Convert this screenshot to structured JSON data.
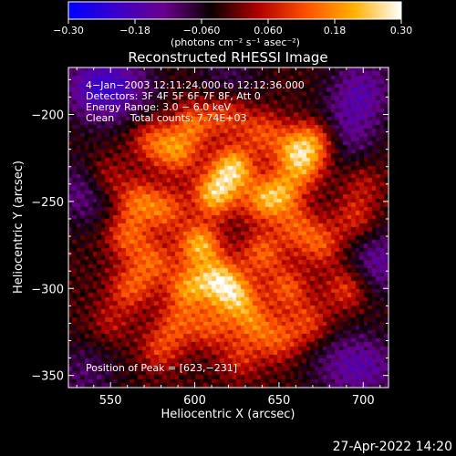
{
  "chart_data": {
    "type": "heatmap",
    "title": "Reconstructed RHESSI Image",
    "xlabel": "Heliocentric X (arcsec)",
    "ylabel": "Heliocentric Y (arcsec)",
    "xlim": [
      525,
      715
    ],
    "ylim": [
      -357,
      -173
    ],
    "x_ticks": [
      550,
      600,
      650,
      700
    ],
    "x_tick_labels": [
      "550",
      "600",
      "650",
      "700"
    ],
    "y_ticks": [
      -200,
      -250,
      -300,
      -350
    ],
    "y_tick_labels": [
      "−200",
      "−250",
      "−300",
      "−350"
    ],
    "colorbar": {
      "range": [
        -0.3,
        0.3
      ],
      "ticks": [
        -0.3,
        -0.18,
        -0.06,
        0.06,
        0.18,
        0.3
      ],
      "tick_labels": [
        "−0.30",
        "−0.18",
        "−0.060",
        "0.060",
        "0.18",
        "0.30"
      ],
      "units_label": "(photons cm⁻² s⁻¹ asec⁻²)",
      "stops": [
        "#0000ff",
        "#3a00cc",
        "#6a008c",
        "#0a0000",
        "#b00000",
        "#ff5000",
        "#ffb000",
        "#ffffff"
      ]
    },
    "annotations": [
      "4−Jan−2003 12:11:24.000 to 12:12:36.000",
      "Detectors: 3F 4F 5F 6F 7F 8F, Att 0",
      "Energy Range: 3.0 − 6.0 keV",
      "Clean     Total counts: 7.74E+03",
      "Position of Peak = [623,−231]"
    ],
    "peak": [
      623,
      -231
    ],
    "blobs": [
      {
        "x": 623,
        "y": -231,
        "value": 0.3
      },
      {
        "x": 612,
        "y": -246,
        "value": 0.29
      },
      {
        "x": 603,
        "y": -275,
        "value": 0.27
      },
      {
        "x": 614,
        "y": -295,
        "value": 0.27
      },
      {
        "x": 625,
        "y": -305,
        "value": 0.24
      },
      {
        "x": 596,
        "y": -300,
        "value": 0.22
      },
      {
        "x": 652,
        "y": -245,
        "value": 0.2
      },
      {
        "x": 640,
        "y": -250,
        "value": 0.19
      },
      {
        "x": 658,
        "y": -220,
        "value": 0.18
      },
      {
        "x": 672,
        "y": -215,
        "value": 0.2
      },
      {
        "x": 665,
        "y": -230,
        "value": 0.18
      },
      {
        "x": 590,
        "y": -222,
        "value": 0.2
      },
      {
        "x": 600,
        "y": -205,
        "value": 0.18
      },
      {
        "x": 575,
        "y": -215,
        "value": 0.16
      },
      {
        "x": 566,
        "y": -250,
        "value": 0.18
      },
      {
        "x": 560,
        "y": -270,
        "value": 0.17
      },
      {
        "x": 562,
        "y": -300,
        "value": 0.16
      },
      {
        "x": 575,
        "y": -285,
        "value": 0.17
      },
      {
        "x": 583,
        "y": -255,
        "value": 0.17
      },
      {
        "x": 640,
        "y": -280,
        "value": 0.18
      },
      {
        "x": 655,
        "y": -300,
        "value": 0.17
      },
      {
        "x": 675,
        "y": -275,
        "value": 0.16
      },
      {
        "x": 690,
        "y": -300,
        "value": 0.15
      },
      {
        "x": 695,
        "y": -260,
        "value": 0.12
      },
      {
        "x": 635,
        "y": -320,
        "value": 0.17
      },
      {
        "x": 650,
        "y": -330,
        "value": 0.15
      },
      {
        "x": 610,
        "y": -322,
        "value": 0.15
      },
      {
        "x": 590,
        "y": -320,
        "value": 0.14
      },
      {
        "x": 580,
        "y": -335,
        "value": 0.13
      },
      {
        "x": 627,
        "y": -340,
        "value": 0.11
      },
      {
        "x": 668,
        "y": -320,
        "value": 0.14
      },
      {
        "x": 640,
        "y": -210,
        "value": 0.15
      },
      {
        "x": 620,
        "y": -200,
        "value": 0.15
      },
      {
        "x": 660,
        "y": -265,
        "value": 0.15
      },
      {
        "x": 700,
        "y": -240,
        "value": 0.08
      },
      {
        "x": 548,
        "y": -235,
        "value": 0.1
      },
      {
        "x": 550,
        "y": -320,
        "value": 0.08
      }
    ],
    "voids": [
      {
        "x": 540,
        "y": -185,
        "value": -0.15
      },
      {
        "x": 700,
        "y": -185,
        "value": -0.12
      },
      {
        "x": 705,
        "y": -345,
        "value": -0.1
      },
      {
        "x": 535,
        "y": -350,
        "value": -0.08
      },
      {
        "x": 533,
        "y": -245,
        "value": -0.1
      },
      {
        "x": 560,
        "y": -185,
        "value": -0.1
      },
      {
        "x": 620,
        "y": -180,
        "value": -0.07
      },
      {
        "x": 690,
        "y": -210,
        "value": -0.1
      },
      {
        "x": 710,
        "y": -285,
        "value": -0.12
      },
      {
        "x": 685,
        "y": -345,
        "value": -0.08
      }
    ]
  },
  "footer": {
    "timestamp": "27-Apr-2022 14:20"
  }
}
